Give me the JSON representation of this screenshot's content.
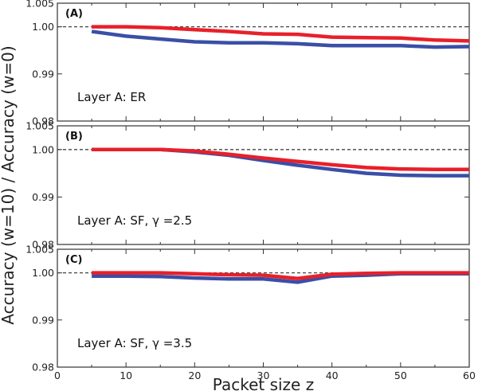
{
  "chart_data": {
    "type": "line",
    "ylabel": "Accuracy (w=10) / Accuracy (w=0)",
    "xlabel": "Packet size z",
    "x_ticks": [
      0,
      10,
      20,
      30,
      40,
      50,
      60
    ],
    "xlim": [
      0,
      60
    ],
    "ylim": [
      0.98,
      1.005
    ],
    "y_ticks": [
      {
        "value": 1.005,
        "label": "1.005"
      },
      {
        "value": 1.0,
        "label": "1.00"
      },
      {
        "value": 0.99,
        "label": "0.99"
      },
      {
        "value": 0.98,
        "label": "0.98"
      }
    ],
    "reference_line": 1.0,
    "colors": {
      "red": "#e8202a",
      "blue": "#3a4fa6",
      "reference": "#444444",
      "axes": "#333333"
    },
    "panels": [
      {
        "letter": "(A)",
        "annotation": "Layer A: ER",
        "series": [
          {
            "name": "red",
            "x": [
              5,
              10,
              15,
              20,
              25,
              30,
              35,
              40,
              45,
              50,
              55,
              60
            ],
            "values": [
              1.0,
              1.0,
              0.9998,
              0.9994,
              0.999,
              0.9985,
              0.9984,
              0.9978,
              0.9977,
              0.9976,
              0.9972,
              0.997
            ]
          },
          {
            "name": "blue",
            "x": [
              5,
              10,
              15,
              20,
              25,
              30,
              35,
              40,
              45,
              50,
              55,
              60
            ],
            "values": [
              0.999,
              0.998,
              0.9974,
              0.9968,
              0.9966,
              0.9966,
              0.9964,
              0.996,
              0.996,
              0.996,
              0.9957,
              0.9958
            ]
          }
        ]
      },
      {
        "letter": "(B)",
        "annotation": "Layer A: SF, γ =2.5",
        "series": [
          {
            "name": "red",
            "x": [
              5,
              10,
              15,
              20,
              25,
              30,
              35,
              40,
              45,
              50,
              55,
              60
            ],
            "values": [
              1.0,
              1.0,
              1.0,
              0.9997,
              0.999,
              0.9982,
              0.9975,
              0.9968,
              0.9962,
              0.9959,
              0.9958,
              0.9958
            ]
          },
          {
            "name": "blue",
            "x": [
              5,
              10,
              15,
              20,
              25,
              30,
              35,
              40,
              45,
              50,
              55,
              60
            ],
            "values": [
              1.0,
              1.0,
              1.0,
              0.9995,
              0.9988,
              0.9977,
              0.9967,
              0.9958,
              0.995,
              0.9946,
              0.9945,
              0.9945
            ]
          }
        ]
      },
      {
        "letter": "(C)",
        "annotation": "Layer A: SF, γ =3.5",
        "series": [
          {
            "name": "red",
            "x": [
              5,
              10,
              15,
              20,
              25,
              30,
              35,
              40,
              45,
              50,
              55,
              60
            ],
            "values": [
              1.0,
              1.0,
              1.0,
              0.9998,
              0.9996,
              0.9995,
              0.9988,
              0.9997,
              0.9999,
              1.0,
              1.0,
              1.0
            ]
          },
          {
            "name": "blue",
            "x": [
              5,
              10,
              15,
              20,
              25,
              30,
              35,
              40,
              45,
              50,
              55,
              60
            ],
            "values": [
              0.9993,
              0.9993,
              0.9992,
              0.9989,
              0.9987,
              0.9987,
              0.998,
              0.9993,
              0.9995,
              0.9998,
              0.9998,
              0.9998
            ]
          }
        ]
      }
    ]
  }
}
